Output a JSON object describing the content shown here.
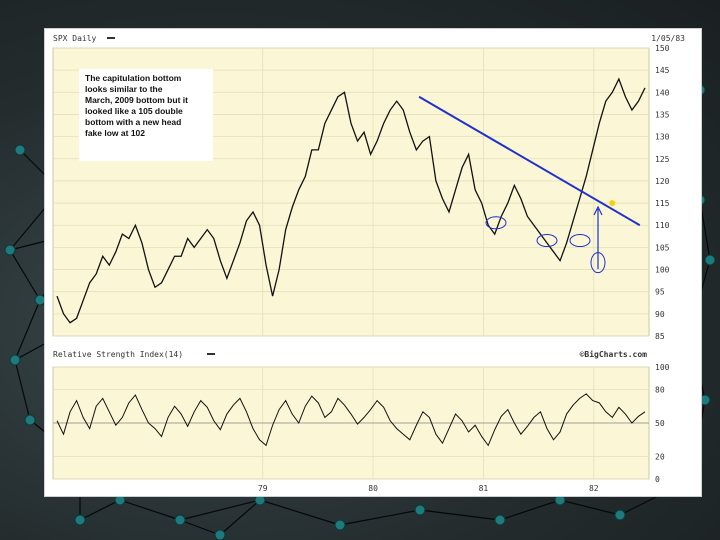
{
  "chart_data": [
    {
      "type": "line",
      "title": "SPX Daily",
      "date_label": "1/05/83",
      "ylim": [
        85,
        150
      ],
      "y_ticks": [
        "85",
        "90",
        "95",
        "100",
        "105",
        "110",
        "115",
        "120",
        "125",
        "130",
        "135",
        "140",
        "145",
        "150"
      ],
      "x_ticks": [
        "79",
        "80",
        "81",
        "82"
      ],
      "grid": true,
      "annotation": "The capitulation bottom looks similar to the March, 2009 bottom but it looked like a 105 double bottom with a new head fake low at 102",
      "trendline": {
        "x": [
          "1980-12",
          "1982-12"
        ],
        "y": [
          139,
          110
        ],
        "color": "#1f2fd0"
      },
      "breakout_point": {
        "x": "1982-09",
        "y": 115,
        "color": "#f2d20a"
      },
      "circled_lows": [
        111,
        107,
        107,
        102
      ],
      "series": [
        {
          "values": [
            94,
            90,
            88,
            89,
            93,
            97,
            99,
            103,
            101,
            104,
            108,
            107,
            110,
            106,
            100,
            96,
            97,
            100,
            103,
            103,
            107,
            105,
            107,
            109,
            107,
            102,
            98,
            102,
            106,
            111,
            113,
            110,
            101,
            94,
            100,
            109,
            114,
            118,
            121,
            127,
            127,
            133,
            136,
            139,
            140,
            133,
            129,
            131,
            126,
            129,
            133,
            136,
            138,
            136,
            131,
            127,
            129,
            130,
            120,
            116,
            113,
            118,
            123,
            126,
            118,
            115,
            110,
            108,
            112,
            115,
            119,
            116,
            112,
            110,
            108,
            106,
            104,
            102,
            106,
            111,
            116,
            121,
            127,
            133,
            138,
            140,
            143,
            139,
            136,
            138,
            141
          ]
        }
      ],
      "color": "#111111",
      "background": "#fbf7d6"
    },
    {
      "type": "line",
      "title": "Relative Strength Index(14)",
      "watermark": "©BigCharts.com",
      "ylim": [
        0,
        100
      ],
      "y_ticks": [
        "0",
        "20",
        "50",
        "80",
        "100"
      ],
      "series": [
        {
          "values": [
            52,
            40,
            60,
            70,
            55,
            45,
            65,
            72,
            60,
            48,
            55,
            68,
            75,
            62,
            50,
            45,
            38,
            55,
            65,
            58,
            47,
            60,
            70,
            64,
            52,
            44,
            58,
            66,
            72,
            60,
            45,
            35,
            30,
            48,
            62,
            70,
            58,
            50,
            65,
            74,
            68,
            55,
            60,
            72,
            66,
            58,
            49,
            55,
            62,
            70,
            64,
            52,
            45,
            40,
            35,
            48,
            60,
            55,
            40,
            32,
            45,
            58,
            52,
            42,
            48,
            38,
            30,
            44,
            56,
            62,
            50,
            40,
            47,
            55,
            60,
            45,
            35,
            42,
            58,
            66,
            72,
            76,
            70,
            68,
            60,
            55,
            64,
            58,
            50,
            56,
            60
          ]
        }
      ],
      "color": "#111111",
      "background": "#fbf7d6"
    }
  ]
}
